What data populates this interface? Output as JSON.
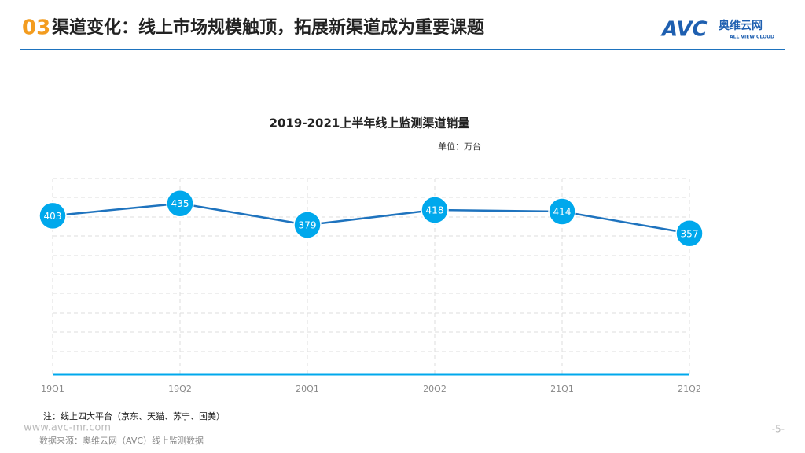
{
  "header": {
    "number": "03",
    "title": "渠道变化：线上市场规模触顶，拓展新渠道成为重要课题"
  },
  "logo": {
    "mark": "AVC",
    "name": "奥维云网",
    "tagline": "ALL VIEW CLOUD"
  },
  "chart_data": {
    "type": "line",
    "title": "2019-2021上半年线上监测渠道销量",
    "unit": "单位：万台",
    "categories": [
      "19Q1",
      "19Q2",
      "20Q1",
      "20Q2",
      "21Q1",
      "21Q2"
    ],
    "values": [
      403,
      435,
      379,
      418,
      414,
      357
    ],
    "color": "#1e73be",
    "marker_color": "#00a8ec",
    "ylim": [
      0,
      500
    ],
    "grid": true
  },
  "footer": {
    "note": "注：线上四大平台（京东、天猫、苏宁、国美）",
    "website": "www.avc-mr.com",
    "source": "数据来源：奥维云网（AVC）线上监测数据",
    "page": "-5-"
  }
}
